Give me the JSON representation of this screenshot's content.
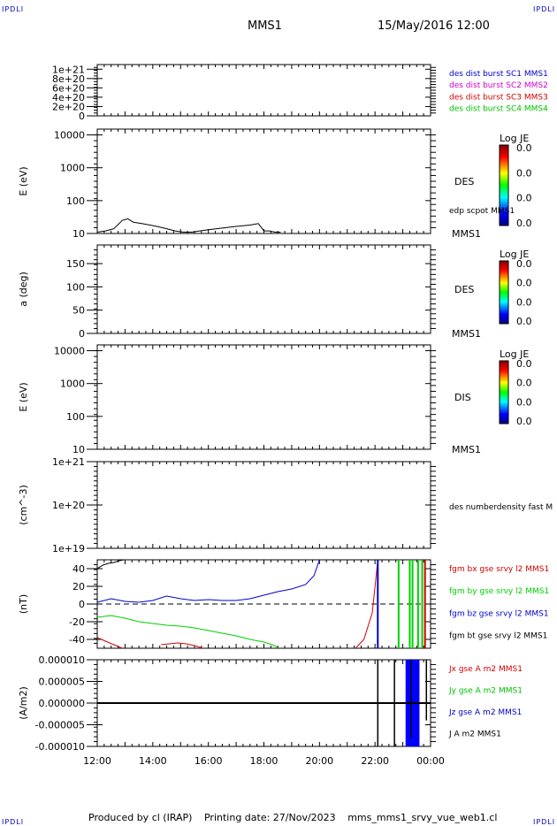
{
  "header": {
    "corner_top_left": "IPDLI",
    "corner_top_right": "IPDLI",
    "corner_bottom_left": "IPDLI",
    "corner_bottom_right": "IPDLI",
    "spacecraft": "MMS1",
    "datetime": "15/May/2016 12:00"
  },
  "footer": {
    "produced_by": "Produced by cl (IRAP)",
    "printing_date": "Printing date: 27/Nov/2023",
    "filename": "mms_mms1_srvy_vue_web1.cl"
  },
  "colors": {
    "black": "#000000",
    "red": "#d00000",
    "green": "#00e000",
    "blue": "#0000d0",
    "magenta": "#d000d0"
  },
  "chart_data": [
    {
      "type": "line",
      "panel": "burst-flags",
      "ylabel": "",
      "yticks": [
        "1e+21",
        "8e+20",
        "6e+20",
        "4e+20",
        "2e+20",
        "0"
      ],
      "ytick_values": [
        1e+21,
        8e+20,
        6e+20,
        4e+20,
        2e+20,
        0
      ],
      "ylim": [
        0,
        1.1e+21
      ],
      "dashed_zero": true,
      "legend": [
        {
          "label": "des dist burst SC1 MMS1",
          "color": "#0000d0"
        },
        {
          "label": "des dist burst SC2 MMS2",
          "color": "#d000d0"
        },
        {
          "label": "des dist burst SC3 MMS3",
          "color": "#d00000"
        },
        {
          "label": "des dist burst SC4 MMS4",
          "color": "#00c000"
        }
      ]
    },
    {
      "type": "heatmap",
      "panel": "des-energy",
      "ylabel": "E (eV)",
      "scale": "log",
      "ylim": [
        10,
        15000
      ],
      "yticks": [
        "10000",
        "1000",
        "100",
        "10"
      ],
      "ytick_values": [
        10000,
        1000,
        100,
        10
      ],
      "right_label": "DES",
      "bottom_right_label": "MMS1",
      "overlay_label": "edp scpot MMS1",
      "overlay_series": {
        "name": "edp scpot MMS1",
        "x": [
          12.0,
          12.3,
          12.6,
          12.9,
          13.1,
          13.3,
          13.6,
          13.9,
          14.2,
          14.5,
          14.8,
          15.1,
          15.4,
          15.7,
          16.0,
          16.3,
          16.6,
          16.9,
          17.2,
          17.5,
          17.8,
          18.0,
          18.2,
          18.4,
          18.6
        ],
        "y": [
          11,
          12,
          14,
          25,
          28,
          22,
          20,
          18,
          16,
          14,
          12,
          11,
          11,
          12,
          13,
          14,
          15,
          16,
          17,
          18,
          20,
          12,
          12,
          11,
          11
        ]
      },
      "colorbar": {
        "title": "Log JE",
        "labels": [
          "0.0",
          "0.0",
          "0.0",
          "0.0"
        ]
      }
    },
    {
      "type": "heatmap",
      "panel": "des-pitch",
      "ylabel": "a (deg)",
      "ylim": [
        0,
        190
      ],
      "yticks": [
        "150",
        "100",
        "50",
        "0"
      ],
      "ytick_values": [
        150,
        100,
        50,
        0
      ],
      "right_label": "DES",
      "bottom_right_label": "MMS1",
      "colorbar": {
        "title": "Log JE",
        "labels": [
          "0.0",
          "0.0",
          "0.0",
          "0.0"
        ]
      }
    },
    {
      "type": "heatmap",
      "panel": "dis-energy",
      "ylabel": "E (eV)",
      "scale": "log",
      "ylim": [
        10,
        15000
      ],
      "yticks": [
        "10000",
        "1000",
        "100",
        "10"
      ],
      "ytick_values": [
        10000,
        1000,
        100,
        10
      ],
      "right_label": "DIS",
      "bottom_right_label": "MMS1",
      "colorbar": {
        "title": "Log JE",
        "labels": [
          "0.0",
          "0.0",
          "0.0",
          "0.0"
        ]
      }
    },
    {
      "type": "line",
      "panel": "density",
      "ylabel": "(cm^-3)",
      "scale": "log",
      "ylim": [
        1e+19,
        1e+21
      ],
      "yticks": [
        "1e+21",
        "1e+20",
        "1e+19"
      ],
      "ytick_values": [
        1e+21,
        1e+20,
        1e+19
      ],
      "legend": [
        {
          "label": "des numberdensity fast M",
          "color": "#000000"
        }
      ]
    },
    {
      "type": "line",
      "panel": "fgm",
      "ylabel": "(nT)",
      "ylim": [
        -50,
        50
      ],
      "yticks": [
        "40",
        "20",
        "0",
        "-20",
        "-40"
      ],
      "ytick_values": [
        40,
        20,
        0,
        -20,
        -40
      ],
      "dashed_zero": true,
      "legend": [
        {
          "label": "fgm bx gse srvy l2 MMS1",
          "color": "#d00000"
        },
        {
          "label": "fgm by gse srvy l2 MMS1",
          "color": "#00d000"
        },
        {
          "label": "fgm bz gse srvy l2 MMS1",
          "color": "#0000d0"
        },
        {
          "label": "fgm bt gse srvy l2 MMS1",
          "color": "#000000"
        }
      ],
      "series": [
        {
          "name": "fgm bt gse srvy l2 MMS1",
          "color": "#000000",
          "x": [
            12.0,
            12.2,
            12.4,
            12.6,
            12.8,
            12.95
          ],
          "y": [
            40,
            44,
            46,
            47,
            49,
            50
          ]
        },
        {
          "name": "fgm bz gse srvy l2 MMS1",
          "color": "#0000d0",
          "x": [
            12.0,
            12.5,
            13.0,
            13.5,
            14.0,
            14.5,
            15.0,
            15.5,
            16.0,
            16.5,
            17.0,
            17.5,
            18.0,
            18.5,
            19.0,
            19.5,
            19.8,
            20.0
          ],
          "y": [
            2,
            6,
            3,
            2,
            4,
            9,
            6,
            4,
            5,
            4,
            4,
            6,
            10,
            14,
            17,
            22,
            32,
            50
          ]
        },
        {
          "name": "fgm by gse srvy l2 MMS1",
          "color": "#00d000",
          "x": [
            12.0,
            12.5,
            13.0,
            13.5,
            14.0,
            14.5,
            15.0,
            15.5,
            16.0,
            16.5,
            17.0,
            17.5,
            18.0,
            18.3,
            18.5
          ],
          "y": [
            -15,
            -13,
            -16,
            -20,
            -22,
            -24,
            -25,
            -27,
            -30,
            -33,
            -36,
            -40,
            -43,
            -46,
            -49
          ]
        },
        {
          "name": "fgm bx gse srvy l2 MMS1",
          "color": "#d00000",
          "x": [
            12.0,
            12.3,
            12.6,
            12.9
          ],
          "y": [
            -38,
            -42,
            -46,
            -50
          ]
        },
        {
          "name": "fgm bx gse srvy l2 MMS1",
          "color": "#d00000",
          "x": [
            14.3,
            14.6,
            14.9,
            15.2,
            15.5,
            15.8
          ],
          "y": [
            -46,
            -45,
            -44,
            -45,
            -47,
            -50
          ]
        },
        {
          "name": "fgm bx gse srvy l2 MMS1",
          "color": "#d00000",
          "x": [
            21.3,
            21.6,
            21.9,
            22.0,
            22.1
          ],
          "y": [
            -50,
            -40,
            -10,
            20,
            50
          ]
        }
      ],
      "spikes": [
        {
          "x": 22.1,
          "color": "#0000d0"
        },
        {
          "x": 22.85,
          "color": "#00d000"
        },
        {
          "x": 23.25,
          "color": "#00d000"
        },
        {
          "x": 23.35,
          "color": "#00d000"
        },
        {
          "x": 23.55,
          "color": "#00d000"
        },
        {
          "x": 23.7,
          "color": "#00d000"
        },
        {
          "x": 23.8,
          "color": "#d00000"
        }
      ]
    },
    {
      "type": "line",
      "panel": "current-density",
      "ylabel": "(A/m2)",
      "ylim": [
        -1e-05,
        1e-05
      ],
      "yticks": [
        "0.000010",
        "0.000005",
        "0.000000",
        "-0.000005",
        "-0.000010"
      ],
      "ytick_values": [
        1e-05,
        5e-06,
        0,
        -5e-06,
        -1e-05
      ],
      "xlim": [
        12,
        24
      ],
      "xticks": [
        "12:00",
        "14:00",
        "16:00",
        "18:00",
        "20:00",
        "22:00",
        "00:00"
      ],
      "xtick_values": [
        12,
        14,
        16,
        18,
        20,
        22,
        24
      ],
      "legend": [
        {
          "label": "Jx gse A m2 MMS1",
          "color": "#d00000"
        },
        {
          "label": "Jy gse A m2 MMS1",
          "color": "#00c000"
        },
        {
          "label": "Jz gse A m2 MMS1",
          "color": "#0000d0"
        },
        {
          "label": "J A m2 MMS1",
          "color": "#000000"
        }
      ],
      "baseline": 0,
      "spikes": [
        {
          "x": 22.1,
          "color": "#000000",
          "ymin": -1e-05,
          "ymax": 1e-05
        },
        {
          "x": 22.7,
          "color": "#000000",
          "ymin": -1e-05,
          "ymax": 1e-05
        },
        {
          "x": 23.3,
          "color": "#000000",
          "ymin": -8e-06,
          "ymax": 1e-05
        },
        {
          "x": 23.85,
          "color": "#000000",
          "ymin": -4e-06,
          "ymax": 1e-05
        }
      ],
      "blue_band": {
        "x_start": 23.1,
        "x_end": 23.6,
        "ymin": -1e-05,
        "ymax": 1e-05
      }
    }
  ]
}
